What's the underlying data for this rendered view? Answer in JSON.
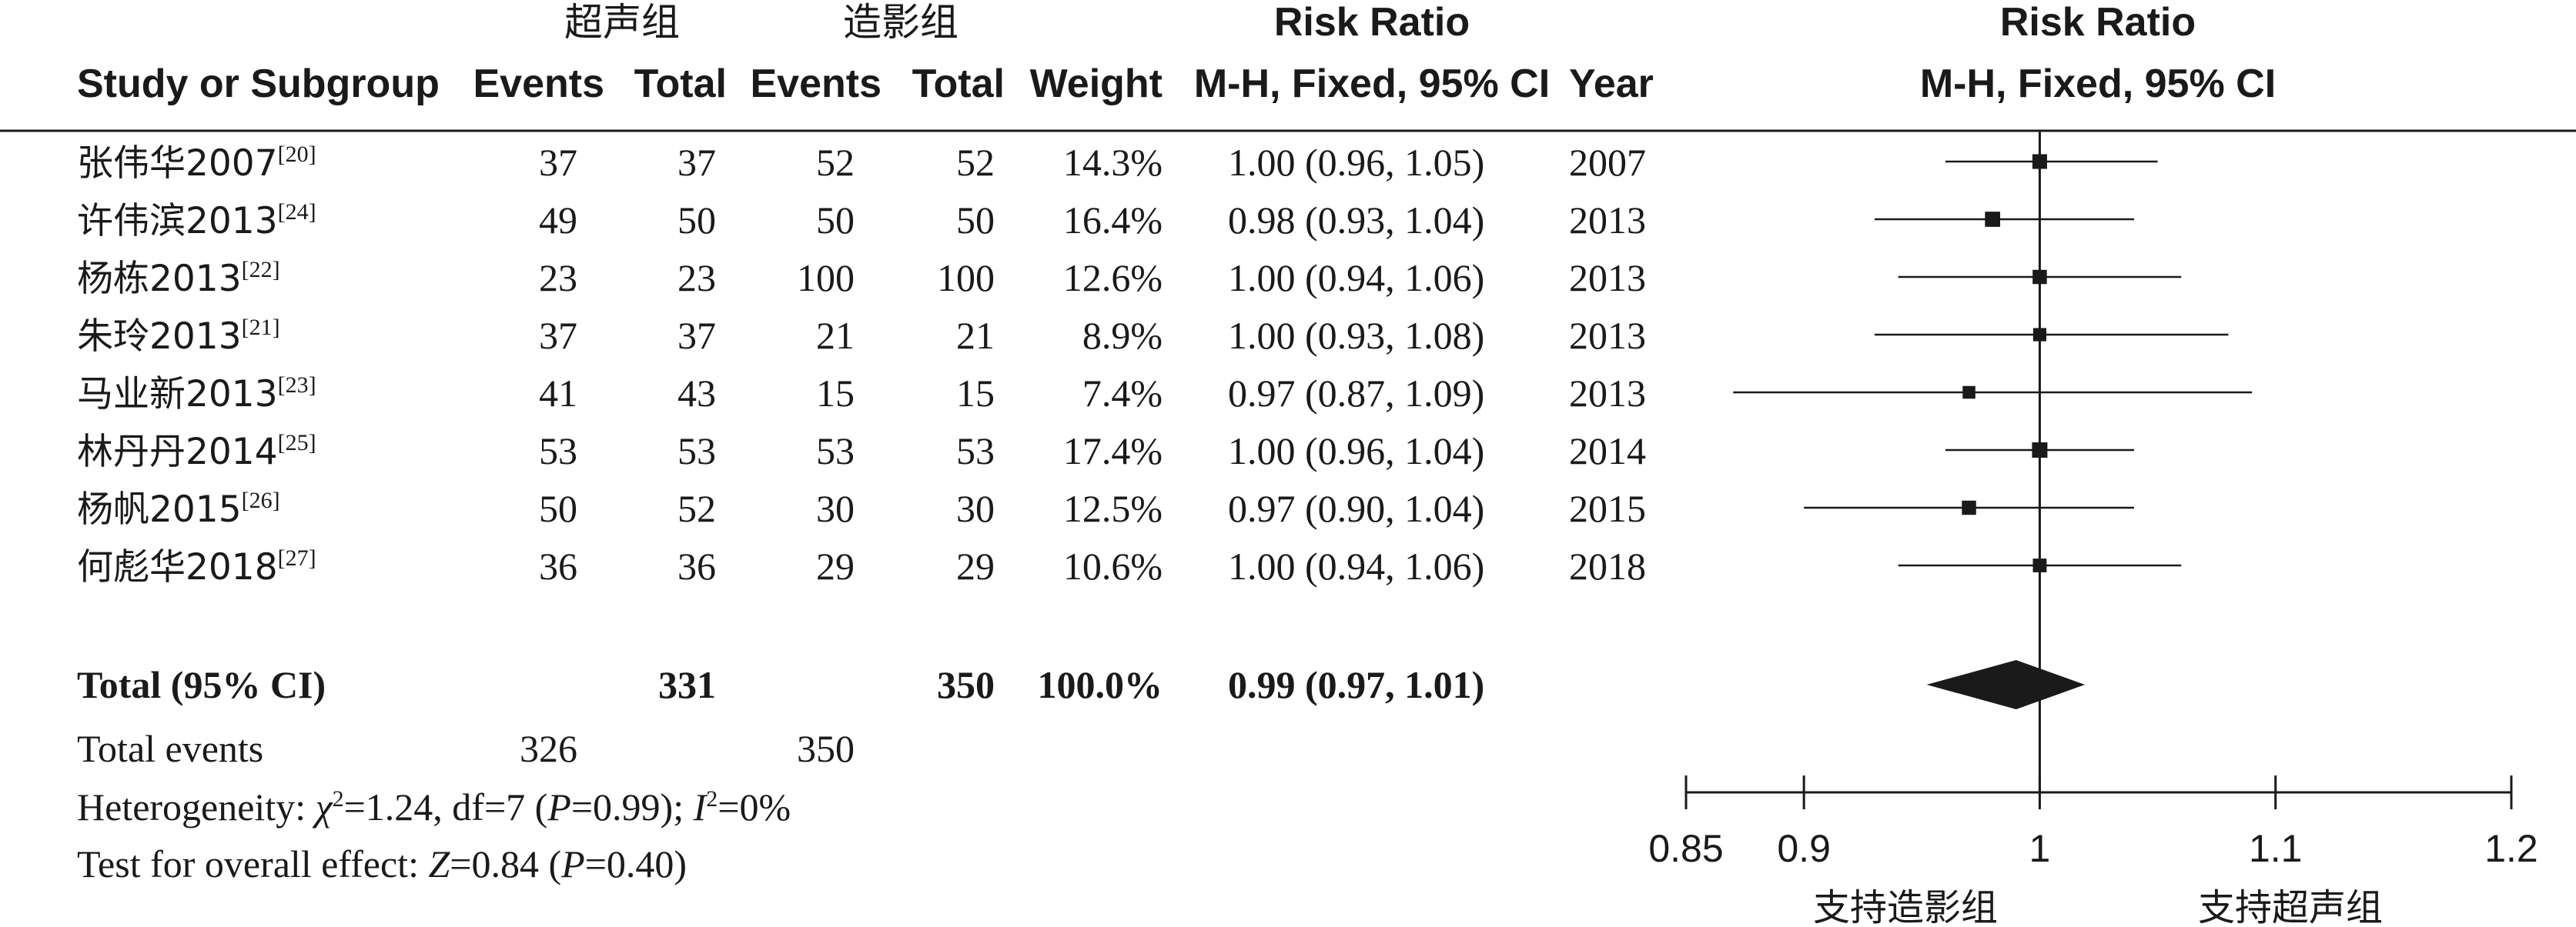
{
  "chart_data": {
    "type": "forest",
    "group_labels": {
      "experimental": "超声组",
      "control": "造影组"
    },
    "headers": {
      "study": "Study or Subgroup",
      "events": "Events",
      "total": "Total",
      "weight": "Weight",
      "ratio_title": "Risk Ratio",
      "ratio_method": "M-H, Fixed, 95% CI",
      "year": "Year"
    },
    "studies": [
      {
        "name": "张伟华2007",
        "ref": "[20]",
        "e_events": "37",
        "e_total": "37",
        "c_events": "52",
        "c_total": "52",
        "weight": "14.3%",
        "ci_text": "1.00 (0.96, 1.05)",
        "year": "2007",
        "rr": 1.0,
        "lo": 0.96,
        "hi": 1.05,
        "w": 14.3
      },
      {
        "name": "许伟滨2013",
        "ref": "[24]",
        "e_events": "49",
        "e_total": "50",
        "c_events": "50",
        "c_total": "50",
        "weight": "16.4%",
        "ci_text": "0.98 (0.93, 1.04)",
        "year": "2013",
        "rr": 0.98,
        "lo": 0.93,
        "hi": 1.04,
        "w": 16.4
      },
      {
        "name": "杨栋2013",
        "ref": "[22]",
        "e_events": "23",
        "e_total": "23",
        "c_events": "100",
        "c_total": "100",
        "weight": "12.6%",
        "ci_text": "1.00 (0.94, 1.06)",
        "year": "2013",
        "rr": 1.0,
        "lo": 0.94,
        "hi": 1.06,
        "w": 12.6
      },
      {
        "name": "朱玲2013",
        "ref": "[21]",
        "e_events": "37",
        "e_total": "37",
        "c_events": "21",
        "c_total": "21",
        "weight": "8.9%",
        "ci_text": "1.00 (0.93, 1.08)",
        "year": "2013",
        "rr": 1.0,
        "lo": 0.93,
        "hi": 1.08,
        "w": 8.9
      },
      {
        "name": "马业新2013",
        "ref": "[23]",
        "e_events": "41",
        "e_total": "43",
        "c_events": "15",
        "c_total": "15",
        "weight": "7.4%",
        "ci_text": "0.97 (0.87, 1.09)",
        "year": "2013",
        "rr": 0.97,
        "lo": 0.87,
        "hi": 1.09,
        "w": 7.4
      },
      {
        "name": "林丹丹2014",
        "ref": "[25]",
        "e_events": "53",
        "e_total": "53",
        "c_events": "53",
        "c_total": "53",
        "weight": "17.4%",
        "ci_text": "1.00 (0.96, 1.04)",
        "year": "2014",
        "rr": 1.0,
        "lo": 0.96,
        "hi": 1.04,
        "w": 17.4
      },
      {
        "name": "杨帆2015",
        "ref": "[26]",
        "e_events": "50",
        "e_total": "52",
        "c_events": "30",
        "c_total": "30",
        "weight": "12.5%",
        "ci_text": "0.97 (0.90, 1.04)",
        "year": "2015",
        "rr": 0.97,
        "lo": 0.9,
        "hi": 1.04,
        "w": 12.5
      },
      {
        "name": "何彪华2018",
        "ref": "[27]",
        "e_events": "36",
        "e_total": "36",
        "c_events": "29",
        "c_total": "29",
        "weight": "10.6%",
        "ci_text": "1.00 (0.94, 1.06)",
        "year": "2018",
        "rr": 1.0,
        "lo": 0.94,
        "hi": 1.06,
        "w": 10.6
      }
    ],
    "total": {
      "label": "Total (95% CI)",
      "e_total": "331",
      "c_total": "350",
      "weight": "100.0%",
      "ci_text": "0.99 (0.97, 1.01)",
      "rr": 0.99,
      "lo": 0.97,
      "hi": 1.01
    },
    "total_events": {
      "label": "Total events",
      "e": "326",
      "c": "350"
    },
    "heterogeneity": {
      "prefix": "Heterogeneity: ",
      "chi_symbol": "χ",
      "chi_sup": "2",
      "chi_rest": "=1.24, df=7 (",
      "p_symbol": "P",
      "p_rest": "=0.99); ",
      "i_symbol": "I",
      "i_sup": "2",
      "i_rest": "=0%"
    },
    "overall_effect": {
      "prefix": "Test for overall effect: ",
      "z_symbol": "Z",
      "z_rest": "=0.84 (",
      "p_symbol": "P",
      "p_rest": "=0.40)"
    },
    "axis": {
      "xlim": [
        0.85,
        1.2
      ],
      "ticks": [
        0.85,
        0.9,
        1,
        1.1,
        1.2
      ],
      "tick_labels": [
        "0.85",
        "0.9",
        "1",
        "1.1",
        "1.2"
      ],
      "null_value": 1,
      "favours_left": "支持造影组",
      "favours_right": "支持超声组"
    }
  }
}
